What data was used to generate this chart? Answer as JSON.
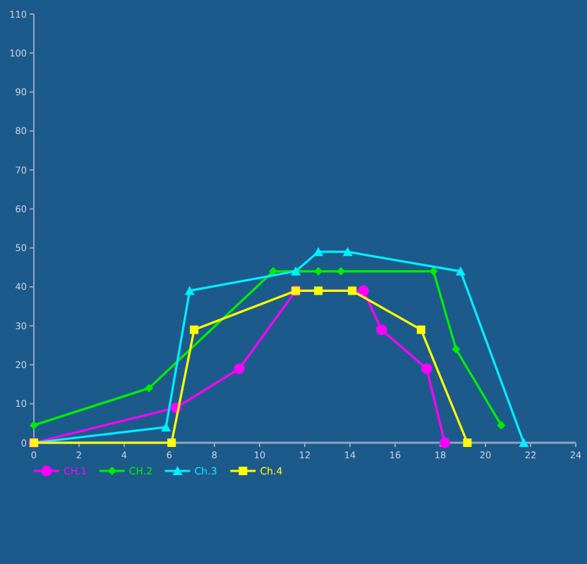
{
  "chart_data": {
    "type": "line",
    "xlim": [
      0,
      24
    ],
    "xticks": [
      0,
      2,
      4,
      6,
      8,
      10,
      12,
      14,
      16,
      18,
      20,
      22,
      24
    ],
    "ylim": [
      0,
      110
    ],
    "yticks": [
      0,
      10,
      20,
      30,
      40,
      50,
      60,
      70,
      80,
      90,
      100,
      110
    ],
    "grid": false,
    "legend": "bottom left",
    "series": [
      {
        "name": "CH.1",
        "color": "#ff00ff",
        "marker": "circle",
        "x": [
          0,
          6.3,
          9.1,
          11.6,
          14.6,
          15.4,
          17.4,
          18.2
        ],
        "values": [
          0,
          9,
          19,
          39,
          39,
          29,
          19,
          0
        ]
      },
      {
        "name": "CH.2",
        "color": "#00ee00",
        "marker": "diamond",
        "x": [
          0,
          5.1,
          10.6,
          12.6,
          13.6,
          17.7,
          18.7,
          20.7
        ],
        "values": [
          4.5,
          14,
          44,
          44,
          44,
          44,
          24,
          4.5
        ]
      },
      {
        "name": "Ch.3",
        "color": "#00eeff",
        "marker": "triangle",
        "x": [
          0,
          5.85,
          6.9,
          11.6,
          12.6,
          13.9,
          18.9,
          21.7
        ],
        "values": [
          0,
          4,
          39,
          44,
          49,
          49,
          44,
          0
        ]
      },
      {
        "name": "Ch.4",
        "color": "#ffff00",
        "marker": "square",
        "x": [
          0,
          6.1,
          7.1,
          11.6,
          12.6,
          14.1,
          17.15,
          19.2
        ],
        "values": [
          0,
          0,
          29,
          39,
          39,
          39,
          29,
          0
        ]
      }
    ]
  }
}
